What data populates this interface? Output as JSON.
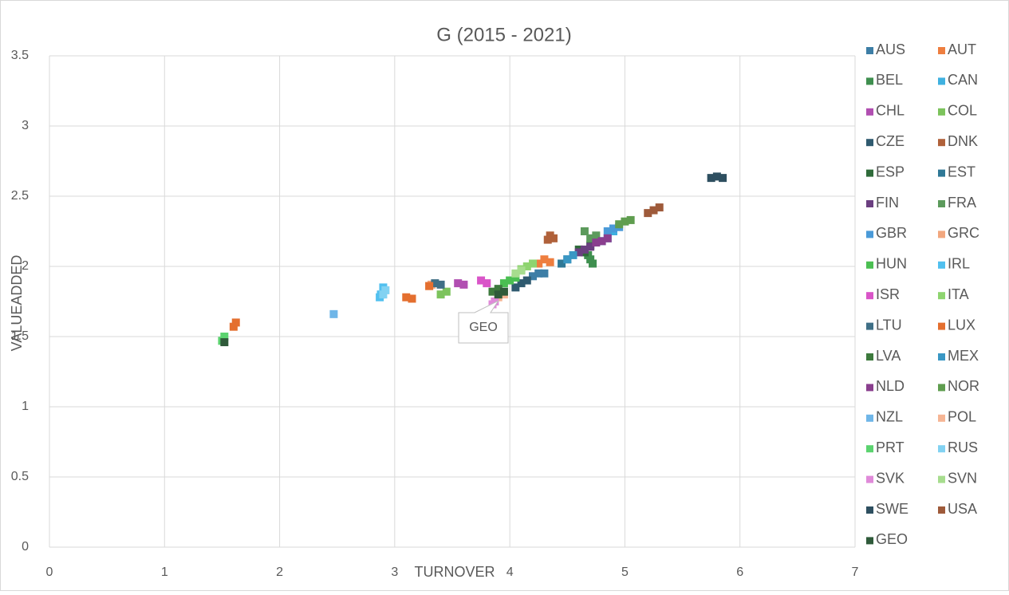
{
  "chart_data": {
    "type": "scatter",
    "title": "G (2015 - 2021)",
    "x_label": "TURNOVER",
    "y_label": "VALUEADDED",
    "xlim": [
      0,
      7
    ],
    "xticks": [
      0,
      1,
      2,
      3,
      4,
      5,
      6,
      7
    ],
    "ylim": [
      0,
      3.5
    ],
    "yticks": [
      0,
      0.5,
      1,
      1.5,
      2,
      2.5,
      3,
      3.5
    ],
    "grid": true,
    "legend": "right",
    "annotations": [
      {
        "text": "GEO"
      }
    ],
    "series": [
      {
        "name": "AUS",
        "color": "#3d7ea6",
        "x": [
          4.3,
          4.2,
          4.25
        ],
        "values": [
          1.95,
          1.93,
          1.95
        ]
      },
      {
        "name": "AUT",
        "color": "#ee7e3f",
        "x": [
          4.3,
          4.35,
          4.25
        ],
        "values": [
          2.05,
          2.03,
          2.02
        ]
      },
      {
        "name": "BEL",
        "color": "#3f8f4f",
        "x": [
          4.7,
          4.72,
          4.68
        ],
        "values": [
          2.05,
          2.02,
          2.08
        ]
      },
      {
        "name": "CAN",
        "color": "#3fb1e0",
        "x": [
          4.85,
          4.9,
          4.8
        ],
        "values": [
          2.2,
          2.25,
          2.18
        ]
      },
      {
        "name": "CHL",
        "color": "#b14fb1",
        "x": [
          3.55,
          3.6
        ],
        "values": [
          1.88,
          1.87
        ]
      },
      {
        "name": "COL",
        "color": "#7cc35c",
        "x": [
          3.4,
          3.45
        ],
        "values": [
          1.8,
          1.82
        ]
      },
      {
        "name": "CZE",
        "color": "#2f5a6f",
        "x": [
          4.05,
          4.1,
          4.15
        ],
        "values": [
          1.85,
          1.88,
          1.9
        ]
      },
      {
        "name": "DNK",
        "color": "#b0613a",
        "x": [
          4.35,
          4.38,
          4.33
        ],
        "values": [
          2.22,
          2.2,
          2.19
        ]
      },
      {
        "name": "ESP",
        "color": "#2f6b3a",
        "x": [
          4.65,
          4.6,
          4.7
        ],
        "values": [
          2.1,
          2.12,
          2.15
        ]
      },
      {
        "name": "EST",
        "color": "#2f7896",
        "x": [
          4.5,
          4.45
        ],
        "values": [
          2.05,
          2.02
        ]
      },
      {
        "name": "FIN",
        "color": "#6b3f80",
        "x": [
          4.6,
          4.65,
          4.7
        ],
        "values": [
          2.1,
          2.12,
          2.14
        ]
      },
      {
        "name": "FRA",
        "color": "#5c9a5c",
        "x": [
          4.65,
          4.7,
          4.75
        ],
        "values": [
          2.25,
          2.2,
          2.22
        ]
      },
      {
        "name": "GBR",
        "color": "#4a9ad8",
        "x": [
          4.85,
          4.9,
          4.95
        ],
        "values": [
          2.25,
          2.27,
          2.28
        ]
      },
      {
        "name": "GRC",
        "color": "#f2a77e",
        "x": [
          3.3,
          3.32
        ],
        "values": [
          1.86,
          1.87
        ]
      },
      {
        "name": "HUN",
        "color": "#4bbf52",
        "x": [
          3.95,
          4.0,
          4.05
        ],
        "values": [
          1.88,
          1.9,
          1.92
        ]
      },
      {
        "name": "IRL",
        "color": "#51c0ef",
        "x": [
          2.9,
          2.88,
          2.87
        ],
        "values": [
          1.85,
          1.8,
          1.78
        ]
      },
      {
        "name": "ISR",
        "color": "#d955c8",
        "x": [
          3.75,
          3.8
        ],
        "values": [
          1.9,
          1.88
        ]
      },
      {
        "name": "ITA",
        "color": "#8ed46f",
        "x": [
          4.1,
          4.15,
          4.2
        ],
        "values": [
          1.98,
          2.0,
          2.02
        ]
      },
      {
        "name": "LTU",
        "color": "#3f6f86",
        "x": [
          3.35,
          3.4
        ],
        "values": [
          1.88,
          1.87
        ]
      },
      {
        "name": "LUX",
        "color": "#e46f2f",
        "x": [
          1.6,
          1.62,
          3.1,
          3.15,
          3.3
        ],
        "values": [
          1.57,
          1.6,
          1.78,
          1.77,
          1.86
        ]
      },
      {
        "name": "LVA",
        "color": "#3d7a3d",
        "x": [
          3.85,
          3.9
        ],
        "values": [
          1.82,
          1.84
        ]
      },
      {
        "name": "MEX",
        "color": "#3a97c4",
        "x": [
          4.5,
          4.55
        ],
        "values": [
          2.05,
          2.08
        ]
      },
      {
        "name": "NLD",
        "color": "#8a3f8e",
        "x": [
          4.8,
          4.85,
          4.75
        ],
        "values": [
          2.18,
          2.2,
          2.17
        ]
      },
      {
        "name": "NOR",
        "color": "#5f9d4f",
        "x": [
          4.95,
          5.0,
          5.05
        ],
        "values": [
          2.3,
          2.32,
          2.33
        ]
      },
      {
        "name": "NZL",
        "color": "#6fb6e8",
        "x": [
          2.47
        ],
        "values": [
          1.66
        ]
      },
      {
        "name": "POL",
        "color": "#f6b594",
        "x": [
          3.9,
          3.95
        ],
        "values": [
          1.78,
          1.8
        ]
      },
      {
        "name": "PRT",
        "color": "#5bd36f",
        "x": [
          1.5,
          1.52
        ],
        "values": [
          1.47,
          1.5
        ]
      },
      {
        "name": "RUS",
        "color": "#82d2f2",
        "x": [
          2.9,
          2.92
        ],
        "values": [
          1.8,
          1.83
        ]
      },
      {
        "name": "SVK",
        "color": "#e08ad9",
        "x": [
          3.85,
          3.87
        ],
        "values": [
          1.73,
          1.75
        ]
      },
      {
        "name": "SVN",
        "color": "#a7dd8e",
        "x": [
          4.05,
          4.1
        ],
        "values": [
          1.95,
          1.97
        ]
      },
      {
        "name": "SWE",
        "color": "#2e4f60",
        "x": [
          5.75,
          5.8,
          5.85
        ],
        "values": [
          2.63,
          2.64,
          2.63
        ]
      },
      {
        "name": "USA",
        "color": "#9e5a3a",
        "x": [
          5.2,
          5.25,
          5.3
        ],
        "values": [
          2.38,
          2.4,
          2.42
        ]
      },
      {
        "name": "GEO",
        "color": "#2f5a3a",
        "x": [
          1.52,
          3.9,
          3.95
        ],
        "values": [
          1.46,
          1.8,
          1.82
        ]
      }
    ]
  }
}
